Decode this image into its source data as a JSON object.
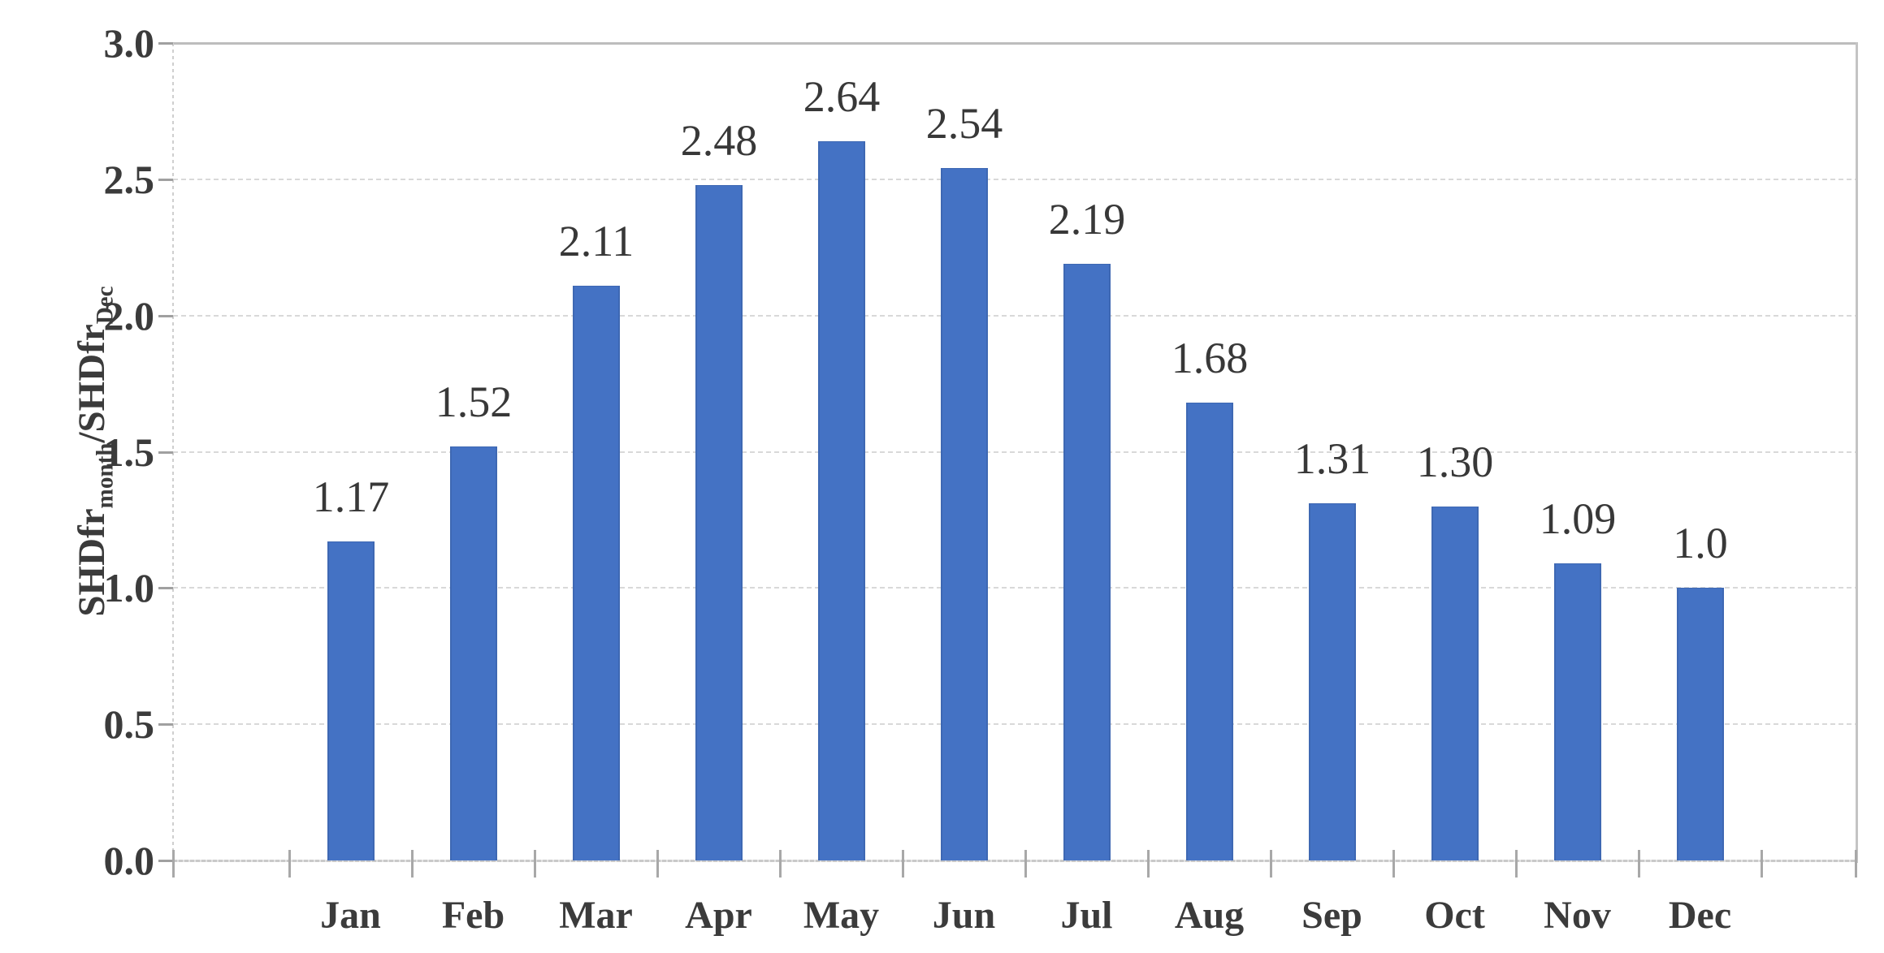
{
  "chart_data": {
    "type": "bar",
    "categories": [
      "Jan",
      "Feb",
      "Mar",
      "Apr",
      "May",
      "Jun",
      "Jul",
      "Aug",
      "Sep",
      "Oct",
      "Nov",
      "Dec"
    ],
    "values": [
      1.17,
      1.52,
      2.11,
      2.48,
      2.64,
      2.54,
      2.19,
      1.68,
      1.31,
      1.3,
      1.09,
      1.0
    ],
    "data_labels": [
      "1.17",
      "1.52",
      "2.11",
      "2.48",
      "2.64",
      "2.54",
      "2.19",
      "1.68",
      "1.31",
      "1.30",
      "1.09",
      "1.0"
    ],
    "title": "",
    "xlabel": "",
    "ylabel": "SHDfr_month/SHDfr_Dec",
    "ylabel_parts": {
      "base1": "SHDfr",
      "sub1": "month",
      "base2": "/SHDfr",
      "sub2": "Dec"
    },
    "ylim": [
      0.0,
      3.0
    ],
    "ytick_step": 0.5,
    "ytick_labels_top_to_bottom": [
      "3.0",
      "2.5",
      "2.0",
      "1.5",
      "1.0",
      "0.5",
      "0.0"
    ],
    "grid": true,
    "legend": false,
    "legend_position": "none",
    "colors": {
      "bar_fill": "#4472C4",
      "bar_edge": "#3E68B3",
      "gridline": "#D9D9D9",
      "axis_line": "#CFCFCF",
      "plot_border": "#BDBDBD",
      "tick": "#A8A8A8",
      "data_label_text": "#383838",
      "axis_text": "#3B3B3B"
    }
  }
}
